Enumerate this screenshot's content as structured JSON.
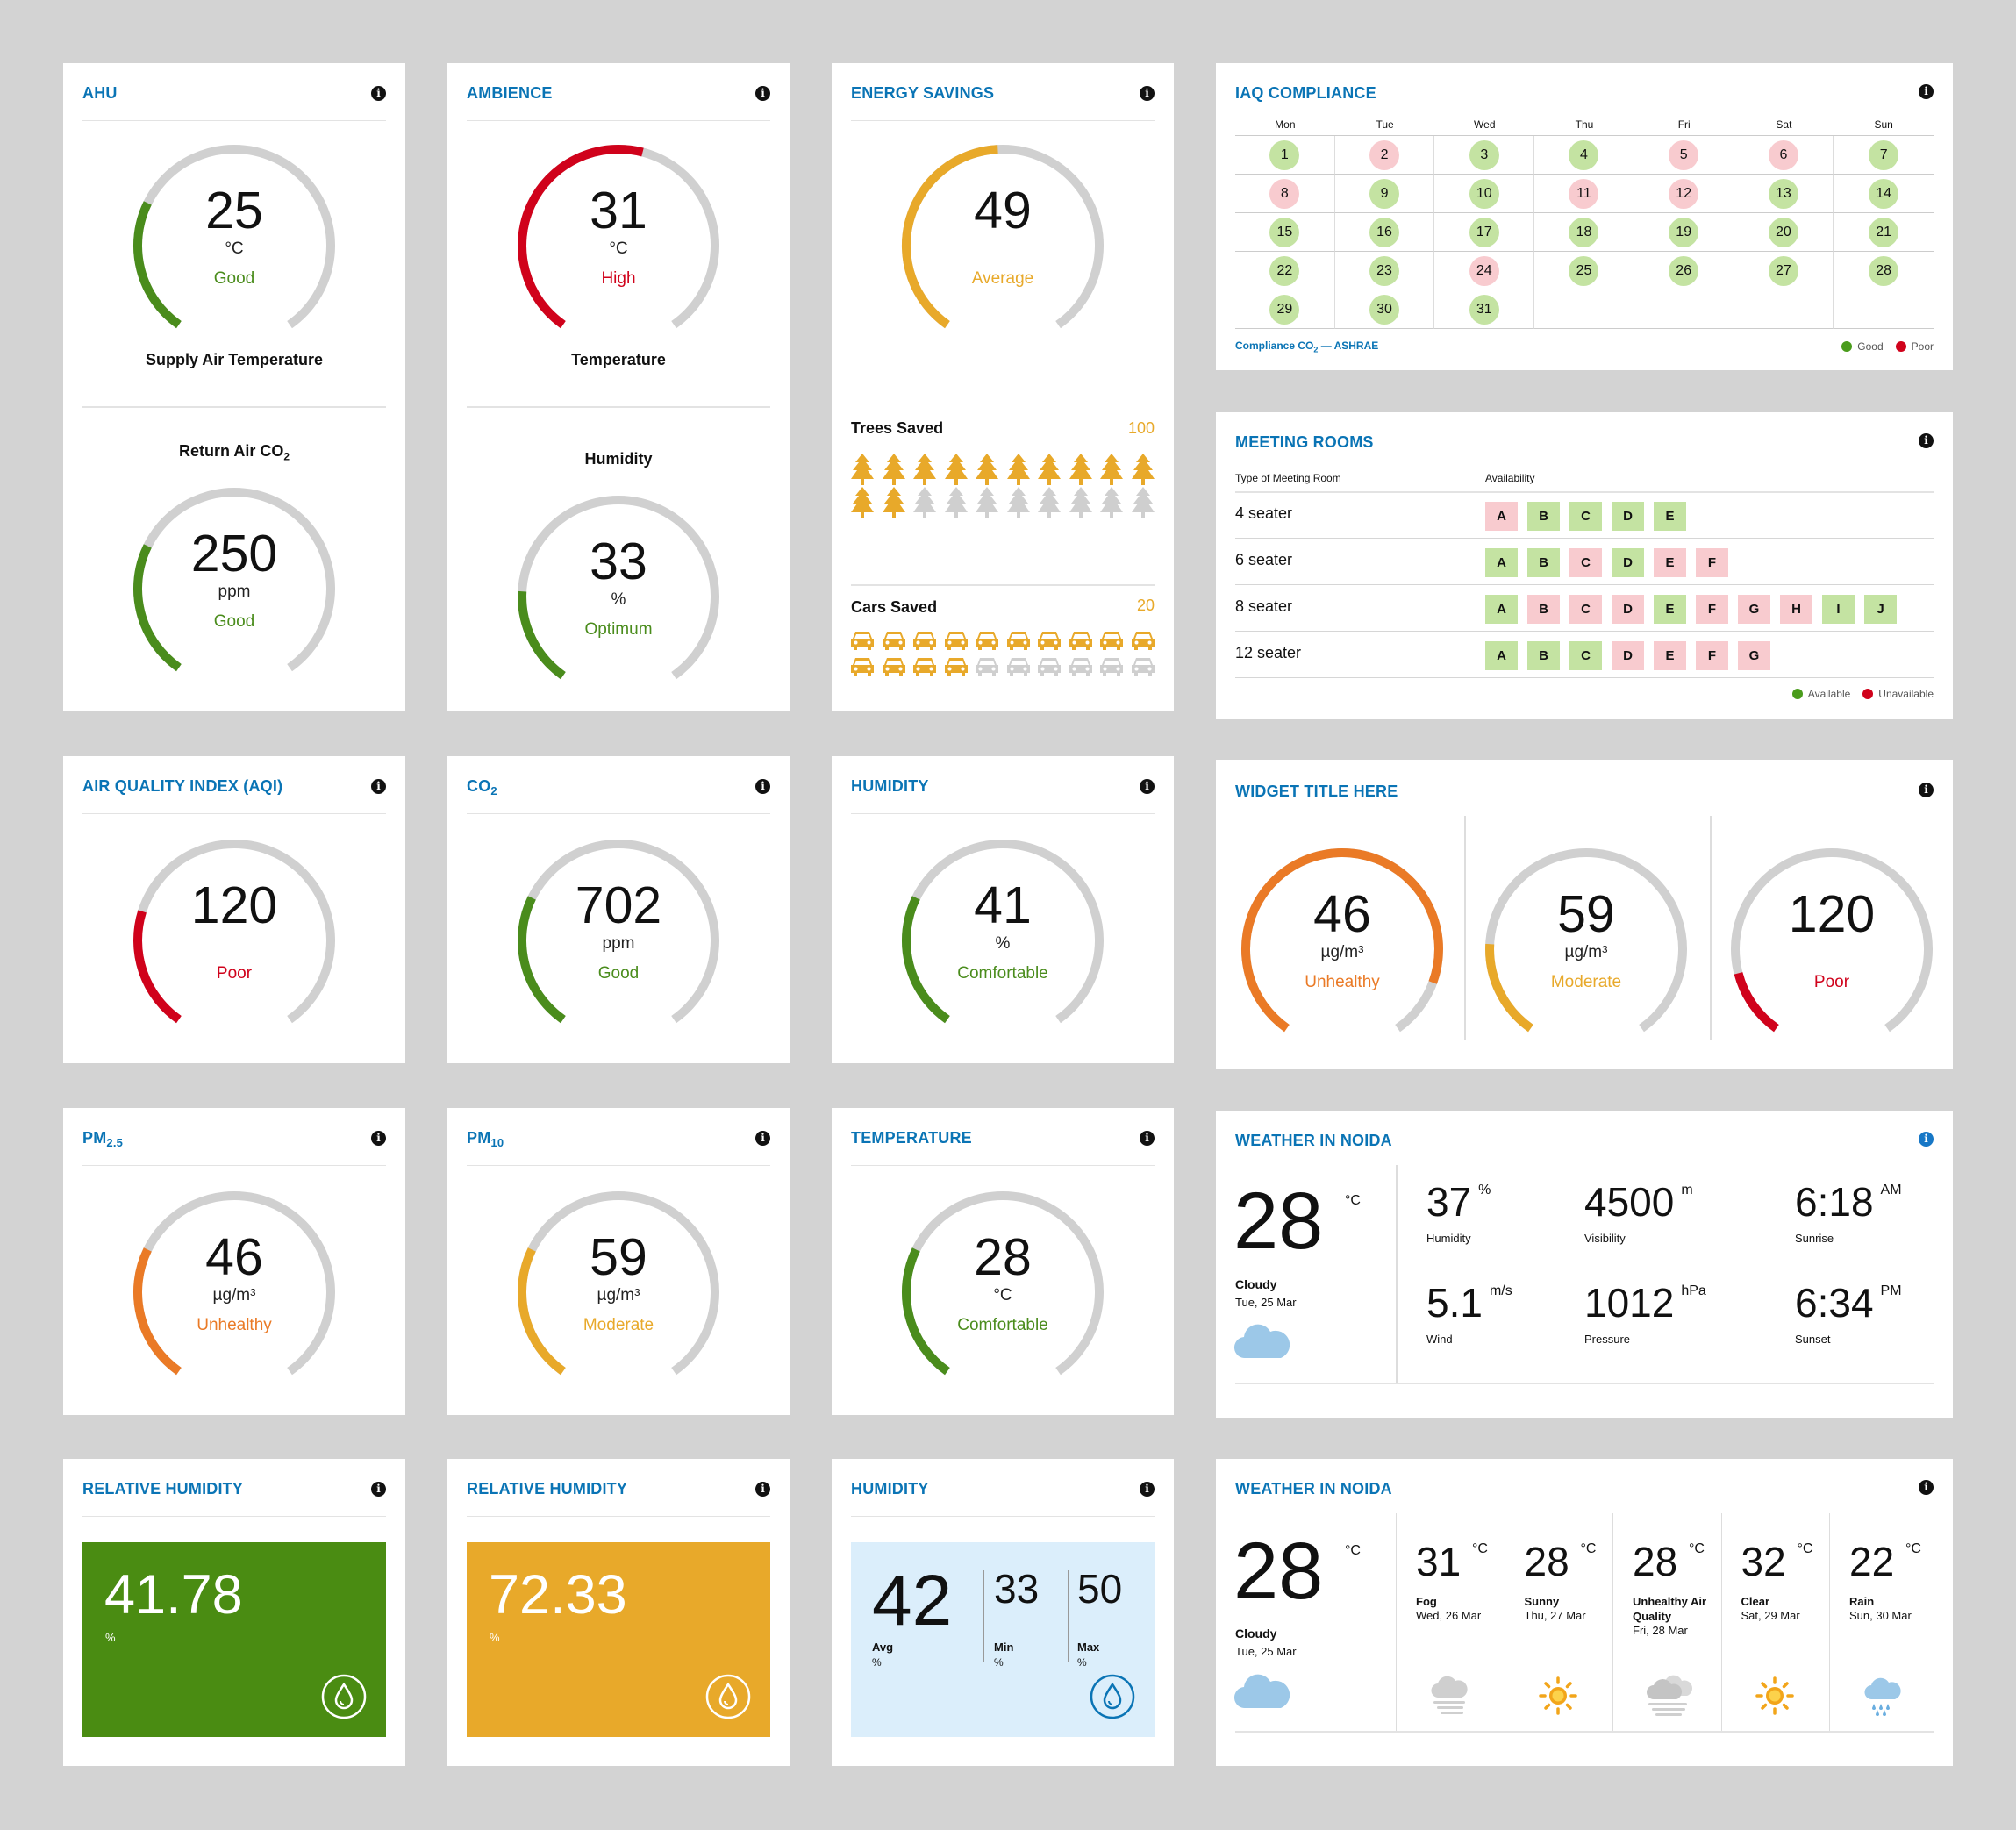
{
  "ahu": {
    "title": "AHU",
    "g1": {
      "value": "25",
      "unit": "°C",
      "status": "Good",
      "label": "Supply Air Temperature",
      "fraction": 0.28,
      "color": "#4a8c1c"
    },
    "g2": {
      "label_pre": "Return Air CO",
      "label_sub": "2",
      "value": "250",
      "unit": "ppm",
      "status": "Good",
      "fraction": 0.28,
      "color": "#4a8c1c"
    }
  },
  "ambience": {
    "title": "AMBIENCE",
    "g1": {
      "value": "31",
      "unit": "°C",
      "status": "High",
      "label": "Temperature",
      "fraction": 0.55,
      "color": "#d0021b"
    },
    "g2": {
      "label": "Humidity",
      "value": "33",
      "unit": "%",
      "status": "Optimum",
      "fraction": 0.2,
      "color": "#4a8c1c"
    }
  },
  "energy": {
    "title": "ENERGY SAVINGS",
    "value": "49",
    "status": "Average",
    "fraction": 0.49,
    "color": "#e8a92a",
    "trees_label": "Trees Saved",
    "trees_count": "100",
    "trees_filled": 12,
    "trees_total": 20,
    "cars_label": "Cars Saved",
    "cars_count": "20",
    "cars_filled": 14,
    "cars_total": 20,
    "accent": "#e8a92a"
  },
  "iaq": {
    "title": "IAQ COMPLIANCE",
    "days": [
      "Mon",
      "Tue",
      "Wed",
      "Thu",
      "Fri",
      "Sat",
      "Sun"
    ],
    "dates": [
      {
        "d": "1",
        "s": "good"
      },
      {
        "d": "2",
        "s": "poor"
      },
      {
        "d": "3",
        "s": "good"
      },
      {
        "d": "4",
        "s": "good"
      },
      {
        "d": "5",
        "s": "poor"
      },
      {
        "d": "6",
        "s": "poor"
      },
      {
        "d": "7",
        "s": "good"
      },
      {
        "d": "8",
        "s": "poor"
      },
      {
        "d": "9",
        "s": "good"
      },
      {
        "d": "10",
        "s": "good"
      },
      {
        "d": "11",
        "s": "poor"
      },
      {
        "d": "12",
        "s": "poor"
      },
      {
        "d": "13",
        "s": "good"
      },
      {
        "d": "14",
        "s": "good"
      },
      {
        "d": "15",
        "s": "good"
      },
      {
        "d": "16",
        "s": "good"
      },
      {
        "d": "17",
        "s": "good"
      },
      {
        "d": "18",
        "s": "good"
      },
      {
        "d": "19",
        "s": "good"
      },
      {
        "d": "20",
        "s": "good"
      },
      {
        "d": "21",
        "s": "good"
      },
      {
        "d": "22",
        "s": "good"
      },
      {
        "d": "23",
        "s": "good"
      },
      {
        "d": "24",
        "s": "poor"
      },
      {
        "d": "25",
        "s": "good"
      },
      {
        "d": "26",
        "s": "good"
      },
      {
        "d": "27",
        "s": "good"
      },
      {
        "d": "28",
        "s": "good"
      },
      {
        "d": "29",
        "s": "good"
      },
      {
        "d": "30",
        "s": "good"
      },
      {
        "d": "31",
        "s": "good"
      }
    ],
    "footnote_pre": "Compliance CO",
    "footnote_sub": "2",
    "footnote_post": " — ASHRAE",
    "legend_good": "Good",
    "legend_poor": "Poor",
    "good_color": "#4a9c1c",
    "poor_color": "#d0021b"
  },
  "meeting": {
    "title": "MEETING ROOMS",
    "col1": "Type of Meeting Room",
    "col2": "Availability",
    "rows": [
      {
        "type": "4 seater",
        "rooms": [
          {
            "n": "A",
            "a": false
          },
          {
            "n": "B",
            "a": true
          },
          {
            "n": "C",
            "a": true
          },
          {
            "n": "D",
            "a": true
          },
          {
            "n": "E",
            "a": true
          }
        ]
      },
      {
        "type": "6 seater",
        "rooms": [
          {
            "n": "A",
            "a": true
          },
          {
            "n": "B",
            "a": true
          },
          {
            "n": "C",
            "a": false
          },
          {
            "n": "D",
            "a": true
          },
          {
            "n": "E",
            "a": false
          },
          {
            "n": "F",
            "a": false
          }
        ]
      },
      {
        "type": "8 seater",
        "rooms": [
          {
            "n": "A",
            "a": true
          },
          {
            "n": "B",
            "a": false
          },
          {
            "n": "C",
            "a": false
          },
          {
            "n": "D",
            "a": false
          },
          {
            "n": "E",
            "a": true
          },
          {
            "n": "F",
            "a": false
          },
          {
            "n": "G",
            "a": false
          },
          {
            "n": "H",
            "a": false
          },
          {
            "n": "I",
            "a": true
          },
          {
            "n": "J",
            "a": true
          }
        ]
      },
      {
        "type": "12 seater",
        "rooms": [
          {
            "n": "A",
            "a": true
          },
          {
            "n": "B",
            "a": true
          },
          {
            "n": "C",
            "a": true
          },
          {
            "n": "D",
            "a": false
          },
          {
            "n": "E",
            "a": false
          },
          {
            "n": "F",
            "a": false
          },
          {
            "n": "G",
            "a": false
          }
        ]
      }
    ],
    "legend_available": "Available",
    "legend_unavailable": "Unavailable"
  },
  "aqi": {
    "title": "AIR QUALITY INDEX (AQI)",
    "value": "120",
    "unit": "",
    "status": "Poor",
    "fraction": 0.25,
    "color": "#d0021b"
  },
  "co2": {
    "title_pre": "CO",
    "title_sub": "2",
    "value": "702",
    "unit": "ppm",
    "status": "Good",
    "fraction": 0.28,
    "color": "#4a8c1c"
  },
  "humidity1": {
    "title": "HUMIDITY",
    "value": "41",
    "unit": "%",
    "status": "Comfortable",
    "fraction": 0.28,
    "color": "#4a8c1c"
  },
  "widget": {
    "title": "WIDGET TITLE HERE",
    "gauges": [
      {
        "value": "46",
        "unit": "µg/m³",
        "status": "Unhealthy",
        "fraction": 0.88,
        "color": "#ea7a26"
      },
      {
        "value": "59",
        "unit": "µg/m³",
        "status": "Moderate",
        "fraction": 0.2,
        "color": "#e8a92a"
      },
      {
        "value": "120",
        "unit": "",
        "status": "Poor",
        "fraction": 0.14,
        "color": "#d0021b"
      }
    ]
  },
  "pm25": {
    "title_pre": "PM",
    "title_sub": "2.5",
    "value": "46",
    "unit": "µg/m³",
    "status": "Unhealthy",
    "fraction": 0.28,
    "color": "#ea7a26"
  },
  "pm10": {
    "title_pre": "PM",
    "title_sub": "10",
    "value": "59",
    "unit": "µg/m³",
    "status": "Moderate",
    "fraction": 0.28,
    "color": "#e8a92a"
  },
  "temperature": {
    "title": "TEMPERATURE",
    "value": "28",
    "unit": "°C",
    "status": "Comfortable",
    "fraction": 0.28,
    "color": "#4a8c1c"
  },
  "weather1": {
    "title": "WEATHER IN NOIDA",
    "temp": "28",
    "temp_unit": "°C",
    "condition": "Cloudy",
    "date": "Tue, 25 Mar",
    "stats": [
      {
        "value": "37",
        "unit": "%",
        "label": "Humidity"
      },
      {
        "value": "4500",
        "unit": "m",
        "label": "Visibility"
      },
      {
        "value": "6:18",
        "unit": "AM",
        "label": "Sunrise"
      },
      {
        "value": "5.1",
        "unit": "m/s",
        "label": "Wind"
      },
      {
        "value": "1012",
        "unit": "hPa",
        "label": "Pressure"
      },
      {
        "value": "6:34",
        "unit": "PM",
        "label": "Sunset"
      }
    ]
  },
  "rh1": {
    "title": "RELATIVE HUMIDITY",
    "value": "41.78",
    "unit": "%",
    "color": "#4a8c12"
  },
  "rh2": {
    "title": "RELATIVE HUMIDITY",
    "value": "72.33",
    "unit": "%",
    "color": "#e8a92a"
  },
  "humidity2": {
    "title": "HUMIDITY",
    "avg": "42",
    "avg_label": "Avg",
    "min": "33",
    "min_label": "Min",
    "max": "50",
    "max_label": "Max",
    "unit": "%"
  },
  "weather2": {
    "title": "WEATHER IN NOIDA",
    "temp": "28",
    "temp_unit": "°C",
    "condition": "Cloudy",
    "date": "Tue, 25 Mar",
    "forecast": [
      {
        "temp": "31",
        "unit": "°C",
        "cond": "Fog",
        "date": "Wed, 26 Mar",
        "icon": "fog-icon"
      },
      {
        "temp": "28",
        "unit": "°C",
        "cond": "Sunny",
        "date": "Thu, 27 Mar",
        "icon": "sun-icon"
      },
      {
        "temp": "28",
        "unit": "°C",
        "cond": "Unhealthy Air Quality",
        "date": "Fri, 28 Mar",
        "icon": "smog-icon"
      },
      {
        "temp": "32",
        "unit": "°C",
        "cond": "Clear",
        "date": "Sat, 29 Mar",
        "icon": "sun-icon"
      },
      {
        "temp": "22",
        "unit": "°C",
        "cond": "Rain",
        "date": "Sun, 30 Mar",
        "icon": "rain-icon"
      }
    ]
  }
}
